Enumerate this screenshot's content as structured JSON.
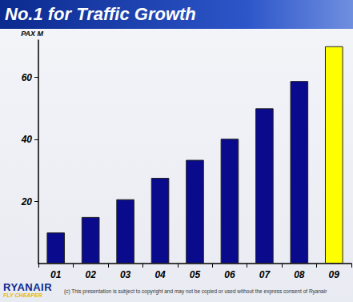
{
  "chart_data": {
    "type": "bar",
    "title": "No.1 for Traffic Growth",
    "ylabel": "PAX M",
    "categories": [
      "01",
      "02",
      "03",
      "04",
      "05",
      "06",
      "07",
      "08",
      "09"
    ],
    "values": [
      10,
      15,
      20.7,
      27.6,
      33.4,
      40.2,
      50,
      58.8,
      70
    ],
    "colors": [
      "#0a0a8c",
      "#0a0a8c",
      "#0a0a8c",
      "#0a0a8c",
      "#0a0a8c",
      "#0a0a8c",
      "#0a0a8c",
      "#0a0a8c",
      "#ffff00"
    ],
    "ylim": [
      0,
      72
    ],
    "yticks": [
      20,
      40,
      60
    ],
    "grid": false
  },
  "logo": {
    "name": "RYANAIR",
    "slogan": "FLY CHEAPER"
  },
  "footnote": "(c) This presentation is subject to copyright and may not be copied or used without the express consent of Ryanair"
}
